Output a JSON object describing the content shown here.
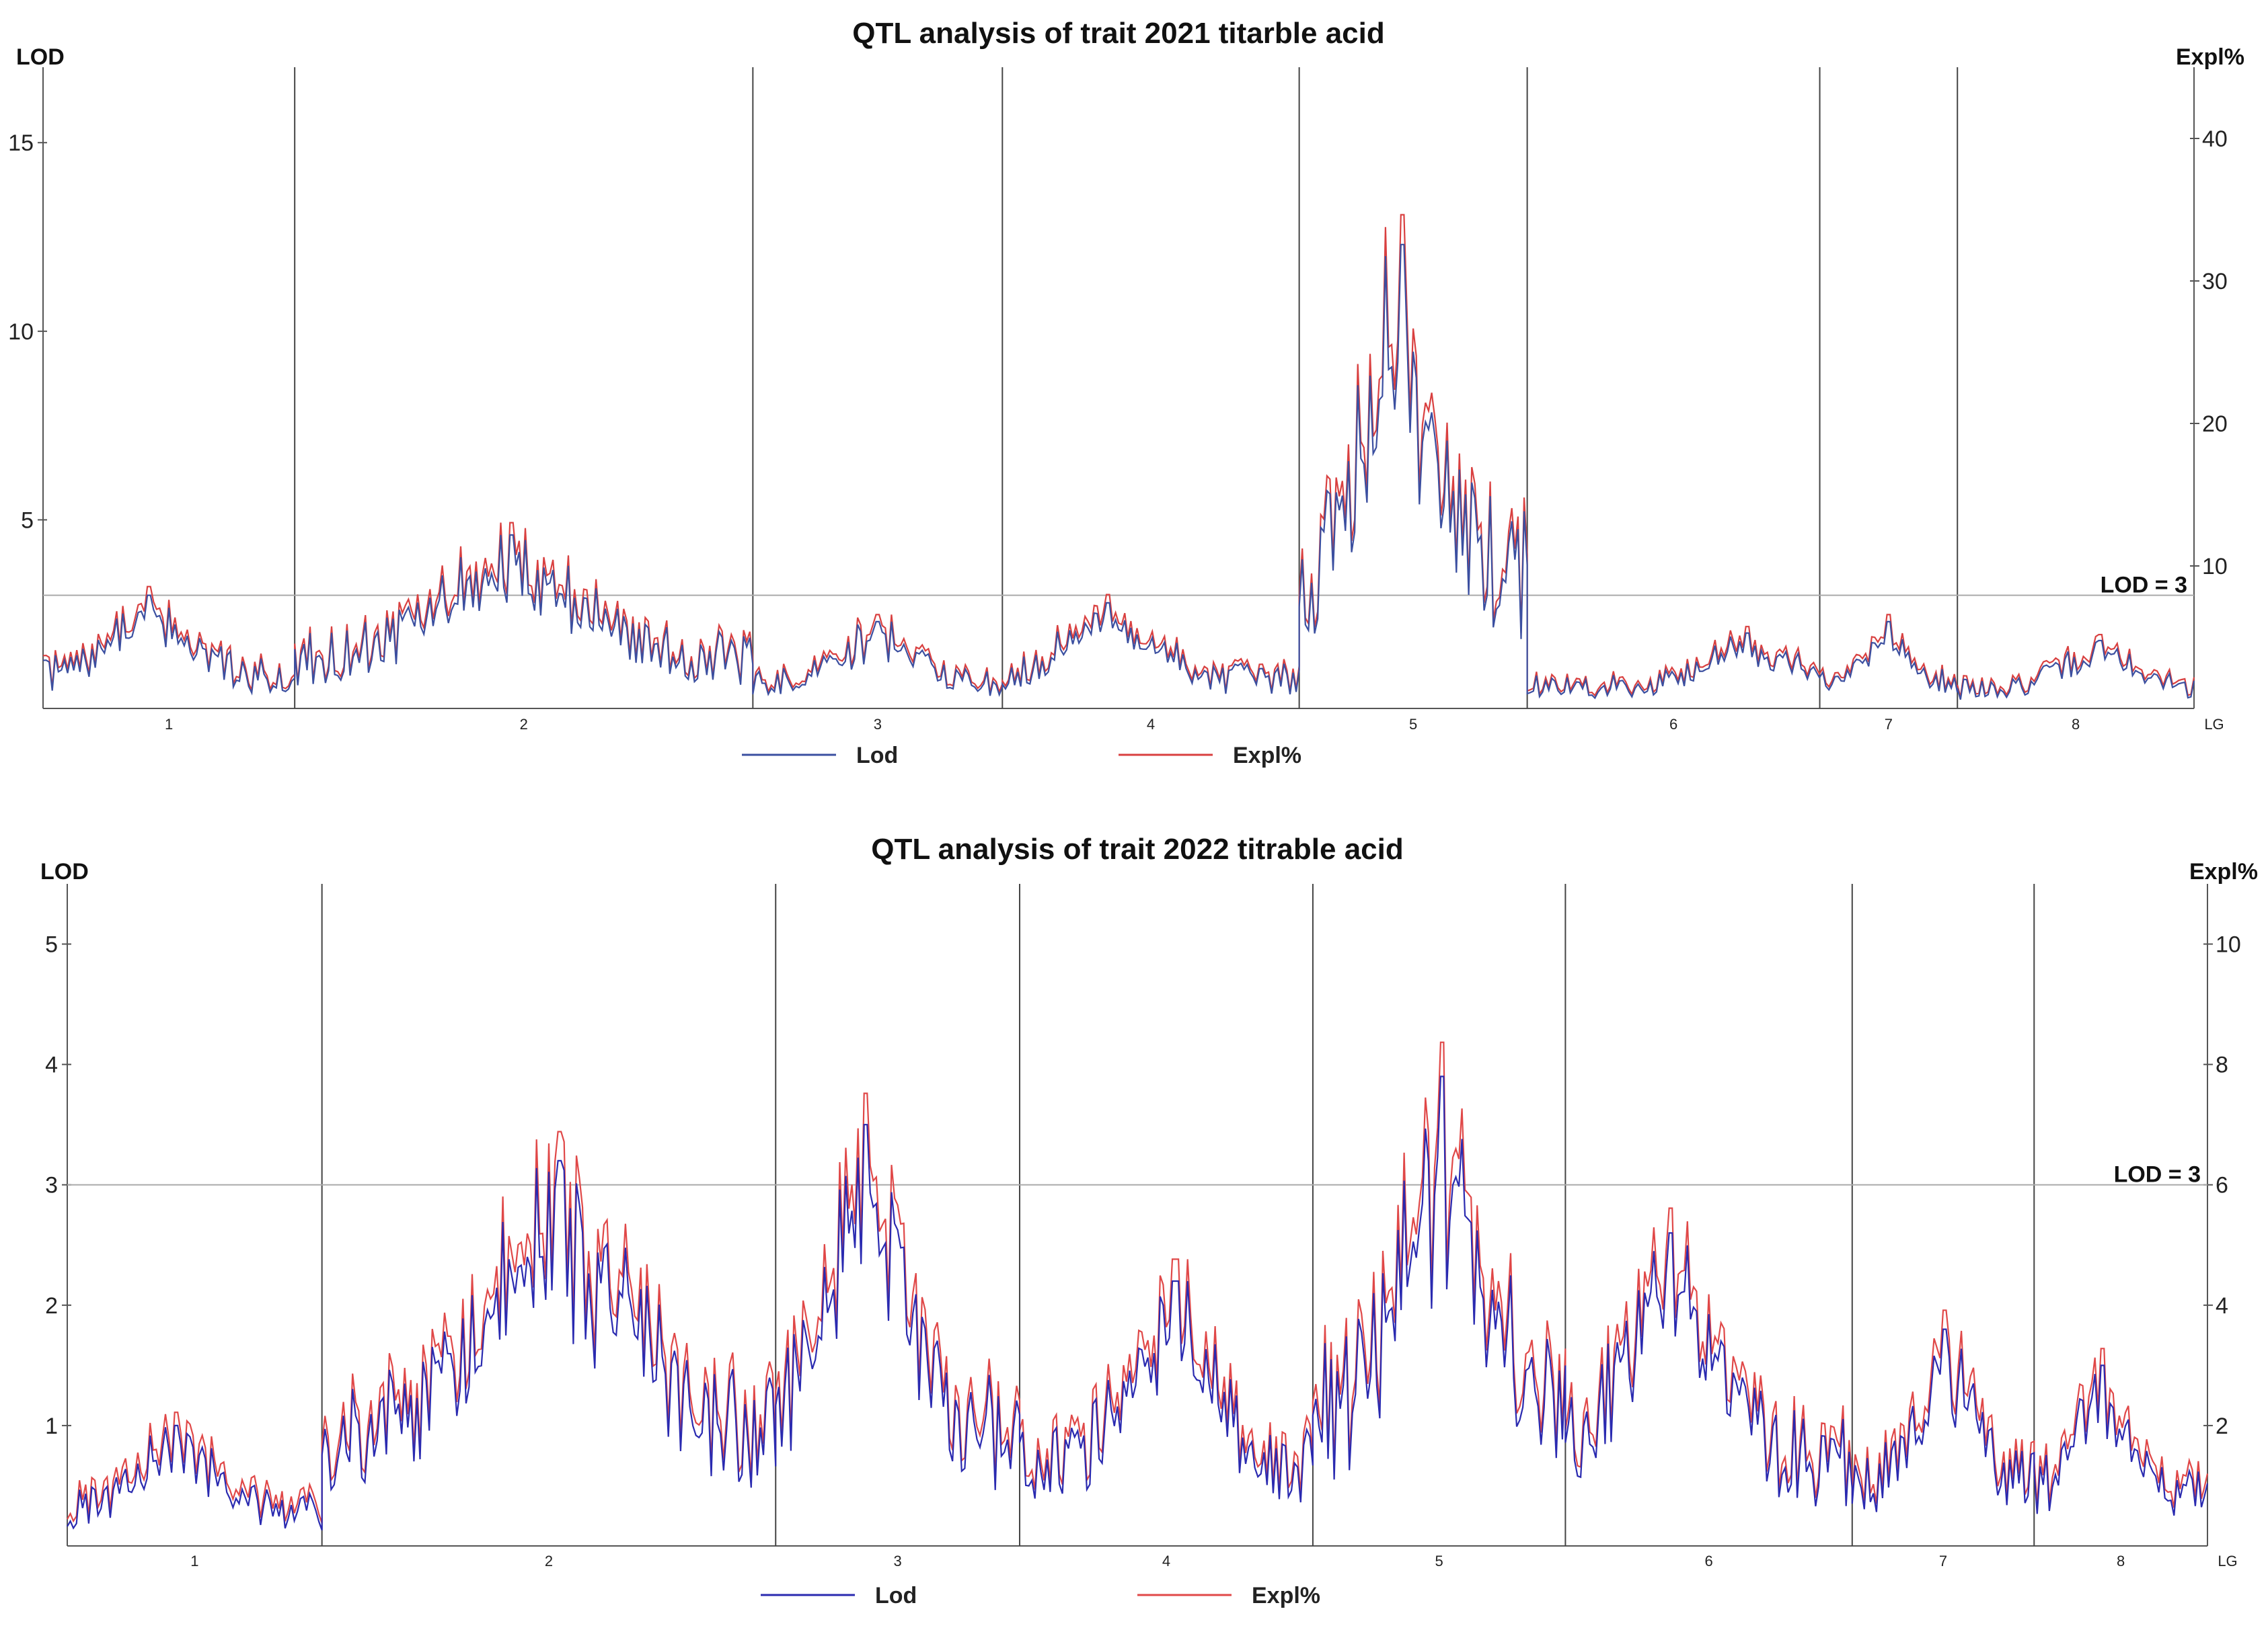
{
  "chart_data": [
    {
      "type": "line",
      "title": "QTL analysis of trait 2021 titarble acid",
      "ylabel_left": "LOD",
      "ylabel_right": "Expl%",
      "xlabel": "LG",
      "ylim_left": [
        0,
        17
      ],
      "ylim_right": [
        0,
        45
      ],
      "yticks_left": [
        5,
        10,
        15
      ],
      "yticks_right": [
        10,
        20,
        30,
        40
      ],
      "threshold": {
        "value": 3,
        "label": "LOD = 3"
      },
      "linkage_groups": [
        "1",
        "2",
        "3",
        "4",
        "5",
        "6",
        "7",
        "8"
      ],
      "series": [
        {
          "name": "Lod",
          "color": "#3b4fa0"
        },
        {
          "name": "Expl%",
          "color": "#d94040"
        }
      ],
      "group_boundaries": [
        0.117,
        0.33,
        0.446,
        0.584,
        0.69,
        0.826,
        0.89
      ],
      "peaks": [
        {
          "group": "1",
          "lod": 3.0
        },
        {
          "group": "2",
          "lod": 4.6
        },
        {
          "group": "3",
          "lod": 2.3
        },
        {
          "group": "4",
          "lod": 2.8
        },
        {
          "group": "5",
          "lod": 12.3
        },
        {
          "group": "6",
          "lod": 2.0
        },
        {
          "group": "7",
          "lod": 2.3
        },
        {
          "group": "8",
          "lod": 1.8
        }
      ]
    },
    {
      "type": "line",
      "title": "QTL analysis of trait 2022 titrable acid",
      "ylabel_left": "LOD",
      "ylabel_right": "Expl%",
      "xlabel": "LG",
      "ylim_left": [
        0,
        5.5
      ],
      "ylim_right": [
        0,
        11
      ],
      "yticks_left": [
        1,
        2,
        3,
        4,
        5
      ],
      "yticks_right": [
        2,
        4,
        6,
        8,
        10
      ],
      "threshold": {
        "value": 3,
        "label": "LOD = 3"
      },
      "linkage_groups": [
        "1",
        "2",
        "3",
        "4",
        "5",
        "6",
        "7",
        "8"
      ],
      "series": [
        {
          "name": "Lod",
          "color": "#2a2ab0"
        },
        {
          "name": "Expl%",
          "color": "#e04848"
        }
      ],
      "group_boundaries": [
        0.119,
        0.331,
        0.445,
        0.582,
        0.7,
        0.834,
        0.919
      ],
      "peaks": [
        {
          "group": "1",
          "lod": 1.0
        },
        {
          "group": "2",
          "lod": 3.2
        },
        {
          "group": "3",
          "lod": 3.5
        },
        {
          "group": "4",
          "lod": 2.2
        },
        {
          "group": "5",
          "lod": 3.9
        },
        {
          "group": "6",
          "lod": 2.6
        },
        {
          "group": "7",
          "lod": 1.8
        },
        {
          "group": "8",
          "lod": 1.5
        }
      ]
    }
  ]
}
